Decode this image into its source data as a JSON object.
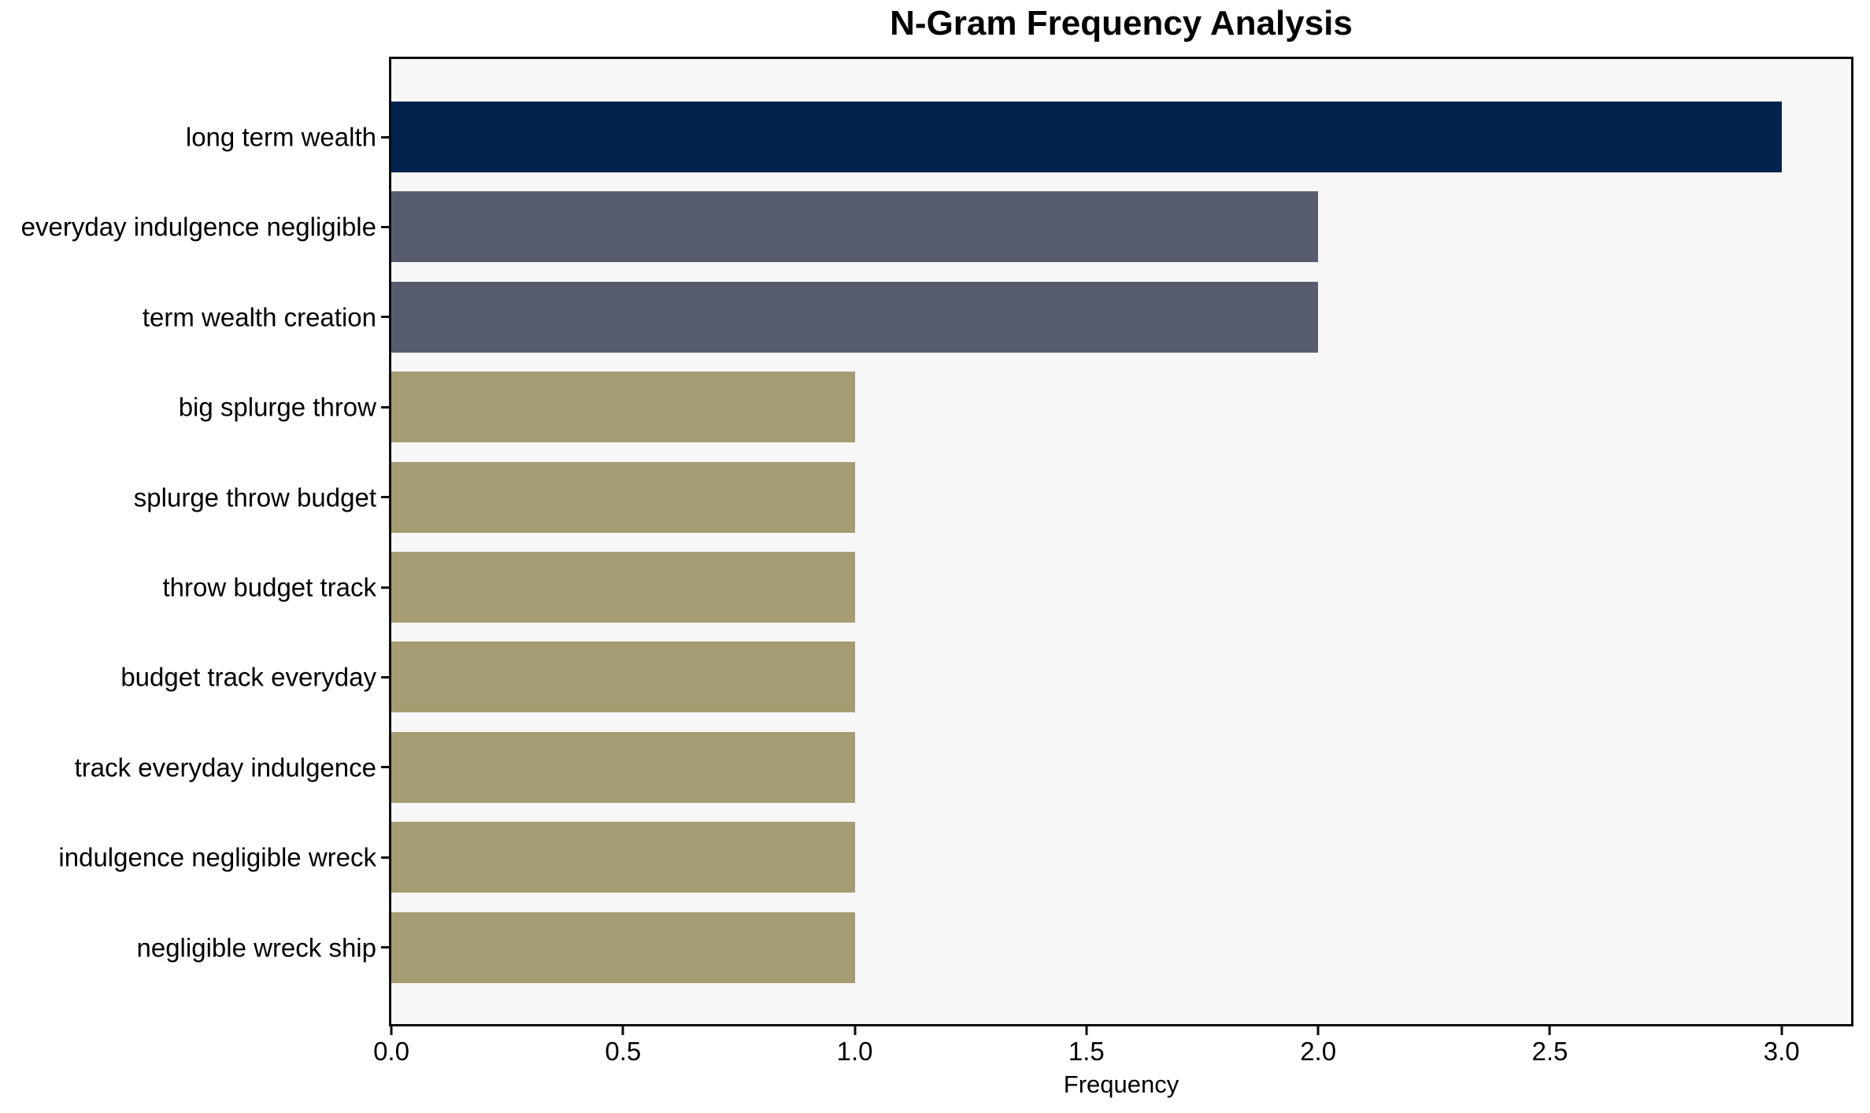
{
  "chart_data": {
    "type": "bar",
    "orientation": "horizontal",
    "title": "N-Gram Frequency Analysis",
    "xlabel": "Frequency",
    "ylabel": "",
    "categories": [
      "long term wealth",
      "everyday indulgence negligible",
      "term wealth creation",
      "big splurge throw",
      "splurge throw budget",
      "throw budget track",
      "budget track everyday",
      "track everyday indulgence",
      "indulgence negligible wreck",
      "negligible wreck ship"
    ],
    "values": [
      3,
      2,
      2,
      1,
      1,
      1,
      1,
      1,
      1,
      1
    ],
    "bar_colors": [
      "#02234d",
      "#575d6e",
      "#575d6e",
      "#a69c72",
      "#a69c72",
      "#a69c72",
      "#a69c72",
      "#a69c72",
      "#a69c72",
      "#a69c72"
    ],
    "palette": {
      "navy": "#02234d",
      "slate": "#575d6e",
      "olive": "#a69c72"
    },
    "xlim": [
      0,
      3.15
    ],
    "xticks": [
      0,
      0.5,
      1,
      1.5,
      2,
      2.5,
      3
    ],
    "xtick_labels": [
      "0.0",
      "0.5",
      "1.0",
      "1.5",
      "2.0",
      "2.5",
      "3.0"
    ],
    "grid": false,
    "legend": null,
    "plot_background": "#f7f7f8",
    "figure_background": "#ffffff",
    "frame_color": "#0a0a0a",
    "text_color": "#000000"
  }
}
